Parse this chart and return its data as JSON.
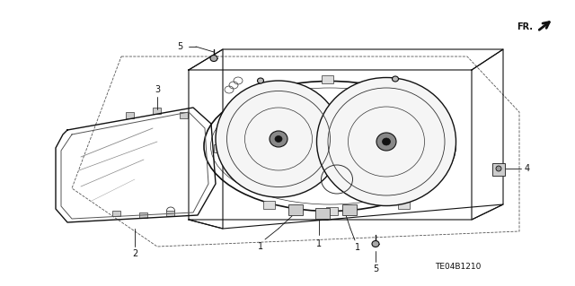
{
  "bg_color": "#ffffff",
  "line_color": "#333333",
  "dark_color": "#111111",
  "part_number": "TE04B1210",
  "fr_label": "FR.",
  "fig_width": 6.4,
  "fig_height": 3.19,
  "dpi": 100
}
